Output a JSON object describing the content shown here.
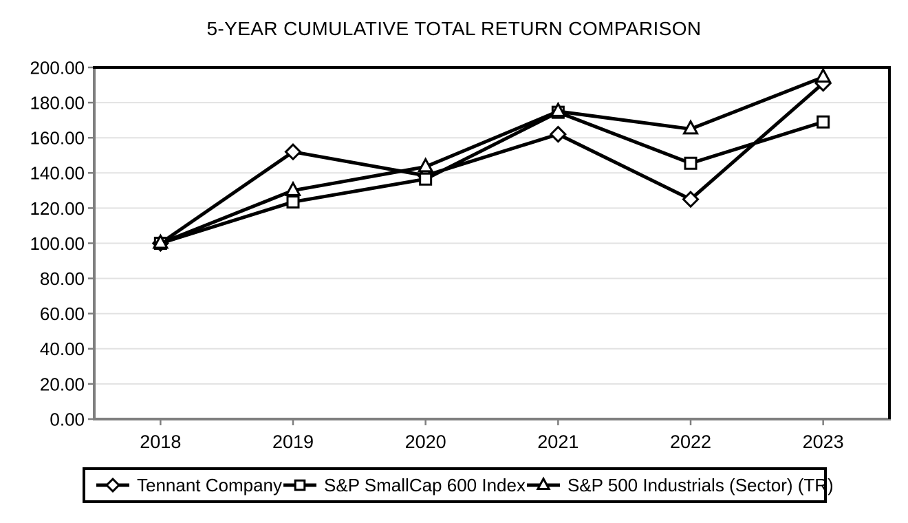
{
  "chart_data": {
    "type": "line",
    "title": "5-YEAR CUMULATIVE TOTAL RETURN COMPARISON",
    "categories": [
      "2018",
      "2019",
      "2020",
      "2021",
      "2022",
      "2023"
    ],
    "series": [
      {
        "name": "Tennant Company",
        "marker": "diamond",
        "values": [
          100.0,
          152.0,
          138.5,
          162.0,
          125.0,
          191.0
        ]
      },
      {
        "name": "S&P SmallCap 600 Index",
        "marker": "square",
        "values": [
          100.0,
          123.5,
          136.5,
          174.5,
          145.5,
          169.0
        ]
      },
      {
        "name": "S&P 500 Industrials (Sector) (TR)",
        "marker": "triangle",
        "values": [
          100.0,
          130.0,
          143.5,
          175.0,
          165.0,
          194.5
        ]
      }
    ],
    "xlabel": "",
    "ylabel": "",
    "ylim": [
      0,
      200
    ],
    "ytick_step": 20,
    "ytick_labels": [
      "0.00",
      "20.00",
      "40.00",
      "60.00",
      "80.00",
      "100.00",
      "120.00",
      "140.00",
      "160.00",
      "180.00",
      "200.00"
    ],
    "grid": true,
    "legend_position": "bottom",
    "line_color": "#000000",
    "marker_fill": "#ffffff",
    "grid_color": "#e2e2e2",
    "axis_color": "#7f7f7f",
    "border_color": "#000000"
  }
}
